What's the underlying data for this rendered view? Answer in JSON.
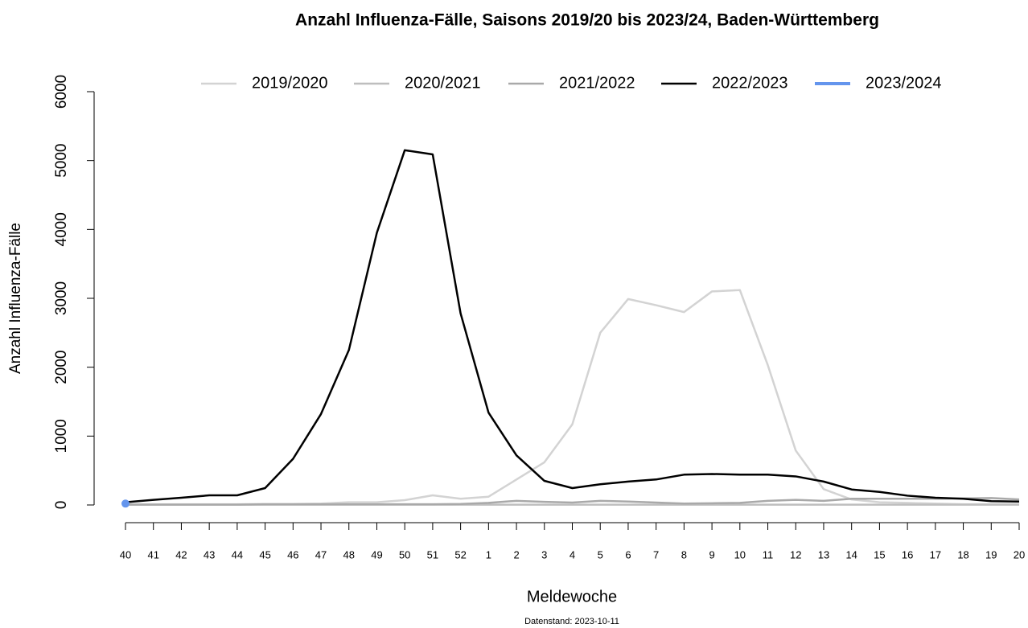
{
  "chart_data": {
    "type": "line",
    "title": "Anzahl Influenza-Fälle, Saisons 2019/20 bis 2023/24, Baden-Württemberg",
    "x_label": "Meldewoche",
    "y_label": "Anzahl Influenza-Fälle",
    "footnote": "Datenstand: 2023-10-11",
    "categories": [
      "40",
      "41",
      "42",
      "43",
      "44",
      "45",
      "46",
      "47",
      "48",
      "49",
      "50",
      "51",
      "52",
      "1",
      "2",
      "3",
      "4",
      "5",
      "6",
      "7",
      "8",
      "9",
      "10",
      "11",
      "12",
      "13",
      "14",
      "15",
      "16",
      "17",
      "18",
      "19",
      "20"
    ],
    "ylim": [
      0,
      6000
    ],
    "yticks": [
      0,
      1000,
      2000,
      3000,
      4000,
      5000,
      6000
    ],
    "grid": false,
    "legend": "top",
    "series": [
      {
        "name": "2019/2020",
        "color": "#d3d3d3",
        "values": [
          10,
          10,
          10,
          10,
          10,
          15,
          15,
          20,
          40,
          40,
          70,
          140,
          90,
          120,
          370,
          620,
          1170,
          2500,
          2990,
          2900,
          2800,
          3100,
          3120,
          2030,
          790,
          230,
          80,
          40,
          30,
          20,
          10,
          10,
          10
        ]
      },
      {
        "name": "2020/2021",
        "color": "#bebebe",
        "values": [
          5,
          5,
          5,
          5,
          5,
          5,
          5,
          5,
          5,
          5,
          5,
          5,
          5,
          5,
          5,
          5,
          5,
          5,
          5,
          5,
          5,
          5,
          5,
          5,
          5,
          5,
          5,
          5,
          5,
          5,
          5,
          5,
          5
        ]
      },
      {
        "name": "2021/2022",
        "color": "#a9a9a9",
        "values": [
          5,
          5,
          5,
          5,
          5,
          10,
          10,
          10,
          10,
          10,
          10,
          10,
          15,
          30,
          60,
          45,
          35,
          60,
          50,
          35,
          20,
          25,
          30,
          60,
          75,
          60,
          90,
          90,
          90,
          90,
          95,
          100,
          80
        ]
      },
      {
        "name": "2022/2023",
        "color": "#000000",
        "values": [
          40,
          75,
          105,
          140,
          140,
          245,
          670,
          1320,
          2250,
          3950,
          5150,
          5090,
          2780,
          1340,
          720,
          350,
          245,
          300,
          340,
          370,
          440,
          450,
          440,
          440,
          415,
          340,
          225,
          190,
          135,
          105,
          90,
          55,
          50
        ]
      },
      {
        "name": "2023/2024",
        "color": "#6495ed",
        "marker": true,
        "values": [
          20,
          null,
          null,
          null,
          null,
          null,
          null,
          null,
          null,
          null,
          null,
          null,
          null,
          null,
          null,
          null,
          null,
          null,
          null,
          null,
          null,
          null,
          null,
          null,
          null,
          null,
          null,
          null,
          null,
          null,
          null,
          null,
          null
        ]
      }
    ]
  }
}
